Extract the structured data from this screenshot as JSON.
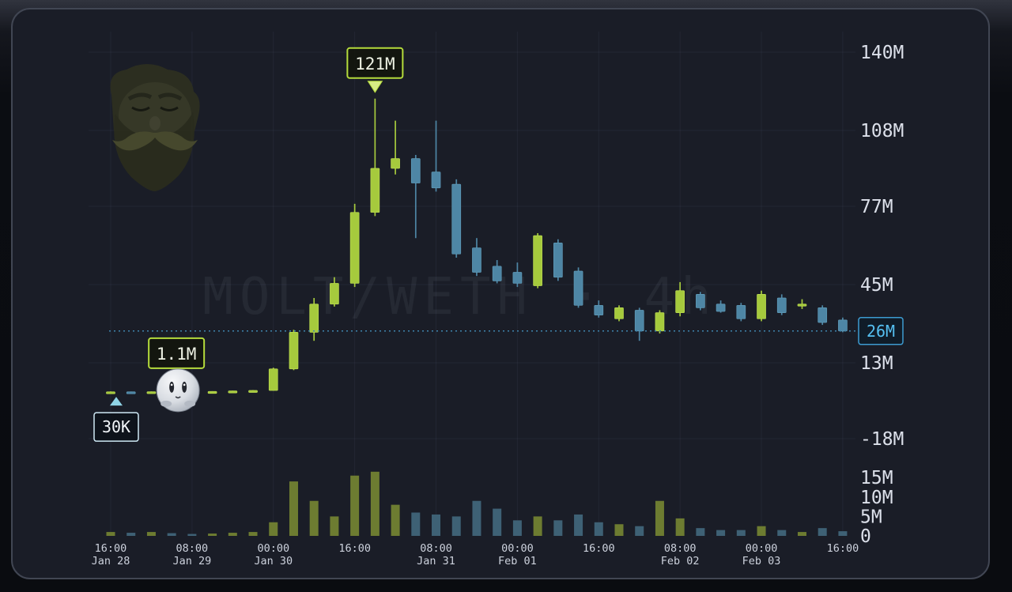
{
  "chart_data": {
    "type": "candlestick",
    "symbol": "MOLT/WETH",
    "timeframe": "4h",
    "watermark": "MOLT/WETH · 4h",
    "price_unit": "M (market cap, millions)",
    "grid": true,
    "ylim_price": [
      -18,
      140
    ],
    "price_axis_ticks": [
      {
        "value": 140,
        "label": "140M"
      },
      {
        "value": 108,
        "label": "108M"
      },
      {
        "value": 77,
        "label": "77M"
      },
      {
        "value": 45,
        "label": "45M"
      },
      {
        "value": 13,
        "label": "13M"
      },
      {
        "value": -18,
        "label": "-18M"
      }
    ],
    "volume_axis_ticks": [
      {
        "value": 15,
        "label": "15M"
      },
      {
        "value": 10,
        "label": "10M"
      },
      {
        "value": 5,
        "label": "5M"
      },
      {
        "value": 0,
        "label": "0"
      }
    ],
    "x_axis_ticks": [
      {
        "candle_index": 0,
        "time": "16:00",
        "date": "Jan 28"
      },
      {
        "candle_index": 4,
        "time": "08:00",
        "date": "Jan 29"
      },
      {
        "candle_index": 8,
        "time": "00:00",
        "date": "Jan 30"
      },
      {
        "candle_index": 12,
        "time": "16:00",
        "date": ""
      },
      {
        "candle_index": 16,
        "time": "08:00",
        "date": "Jan 31"
      },
      {
        "candle_index": 20,
        "time": "00:00",
        "date": "Feb 01"
      },
      {
        "candle_index": 24,
        "time": "16:00",
        "date": ""
      },
      {
        "candle_index": 28,
        "time": "08:00",
        "date": "Feb 02"
      },
      {
        "candle_index": 32,
        "time": "00:00",
        "date": "Feb 03"
      },
      {
        "candle_index": 36,
        "time": "16:00",
        "date": ""
      }
    ],
    "current_price": {
      "value": 26,
      "label": "26M"
    },
    "candles_format": [
      "open",
      "high",
      "low",
      "close",
      "volume"
    ],
    "candles": [
      [
        1.0,
        1.3,
        0.9,
        1.15,
        1.0
      ],
      [
        1.15,
        1.25,
        1.0,
        1.05,
        0.8
      ],
      [
        1.05,
        1.3,
        1.0,
        1.2,
        1.0
      ],
      [
        1.2,
        1.35,
        1.05,
        1.1,
        0.7
      ],
      [
        1.1,
        1.25,
        1.0,
        1.05,
        0.5
      ],
      [
        1.05,
        1.4,
        1.0,
        1.3,
        0.6
      ],
      [
        1.3,
        1.6,
        1.25,
        1.5,
        0.8
      ],
      [
        1.5,
        1.85,
        1.4,
        1.7,
        1.0
      ],
      [
        1.7,
        11.0,
        1.6,
        10.5,
        3.5
      ],
      [
        10.5,
        26.5,
        10.0,
        25.5,
        14.0
      ],
      [
        25.5,
        39.5,
        22.0,
        37.0,
        9.0
      ],
      [
        37.0,
        48.0,
        36.0,
        45.5,
        5.0
      ],
      [
        45.5,
        78.0,
        44.0,
        74.5,
        15.5
      ],
      [
        74.5,
        121.0,
        73.0,
        92.5,
        16.5
      ],
      [
        92.5,
        112.0,
        90.0,
        96.5,
        8.0
      ],
      [
        96.5,
        98.0,
        64.0,
        86.5,
        6.0
      ],
      [
        91.0,
        112.0,
        83.0,
        84.5,
        5.5
      ],
      [
        86.0,
        88.0,
        56.0,
        57.5,
        5.0
      ],
      [
        60.0,
        64.0,
        48.5,
        50.0,
        9.0
      ],
      [
        52.5,
        55.0,
        45.5,
        46.5,
        7.0
      ],
      [
        50.0,
        54.0,
        44.0,
        45.5,
        4.0
      ],
      [
        44.5,
        66.0,
        43.5,
        65.0,
        5.0
      ],
      [
        62.0,
        63.5,
        46.5,
        48.0,
        4.0
      ],
      [
        50.5,
        52.0,
        35.5,
        36.5,
        5.5
      ],
      [
        36.5,
        38.5,
        31.5,
        32.5,
        3.5
      ],
      [
        31.0,
        36.5,
        30.0,
        35.5,
        3.0
      ],
      [
        34.5,
        35.5,
        22.0,
        26.0,
        2.5
      ],
      [
        26.0,
        34.5,
        25.0,
        33.5,
        9.0
      ],
      [
        33.5,
        46.0,
        32.0,
        42.5,
        4.5
      ],
      [
        41.0,
        42.0,
        34.5,
        35.5,
        2.0
      ],
      [
        37.0,
        38.5,
        33.5,
        34.0,
        1.5
      ],
      [
        36.5,
        37.5,
        30.0,
        31.0,
        1.5
      ],
      [
        31.0,
        42.5,
        30.0,
        41.0,
        2.5
      ],
      [
        39.5,
        41.0,
        32.5,
        33.5,
        1.5
      ],
      [
        36.5,
        39.0,
        35.0,
        37.0,
        1.0
      ],
      [
        35.5,
        36.5,
        28.5,
        29.5,
        2.0
      ],
      [
        30.5,
        31.5,
        25.5,
        26.0,
        1.2
      ]
    ],
    "markers": [
      {
        "id": "peak",
        "label": "121M",
        "candle_index": 13,
        "value": 121,
        "shape": "triangle-down",
        "color": "lime"
      },
      {
        "id": "entry",
        "label": "1.1M",
        "candle_index": 3,
        "value": 1.1,
        "shape": "avatar",
        "color": "lime"
      },
      {
        "id": "buy",
        "label": "30K",
        "candle_index": 0,
        "value": 1.0,
        "shape": "triangle-up",
        "color": "cyan"
      }
    ],
    "icons": {
      "mascot_watermark": "bearded-face-logo",
      "entry_avatar": "white-ball-character"
    },
    "colors": {
      "up": "#a6ca3d",
      "down": "#4e86a5",
      "vol_up": "#6d7c31",
      "vol_down": "#3e6175",
      "price_line": "#3f85ad",
      "tag_text": "#55c0f2",
      "tag_border": "#3d9bd1",
      "marker_green_border": "#b5dc3c",
      "marker_cyan_border": "#cfe9f5",
      "axis_text": "#dce0ea",
      "x_axis_text": "#ccd1dc",
      "panel_bg": "#1a1d27",
      "grid_line": "rgba(160,176,210,0.07)"
    }
  }
}
